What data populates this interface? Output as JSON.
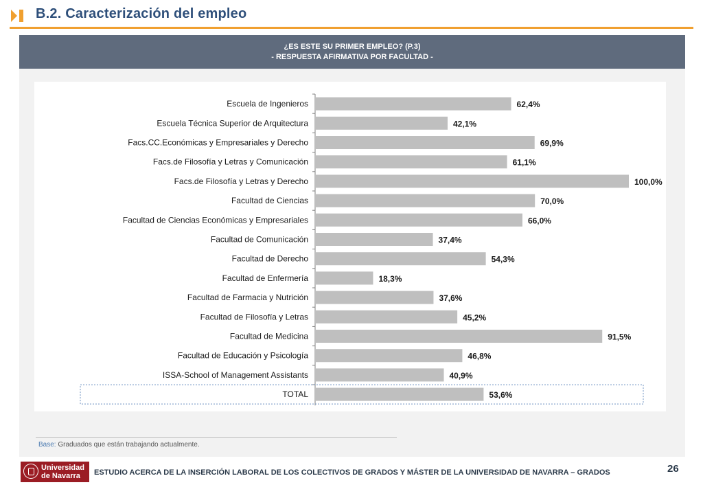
{
  "header": {
    "title": "B.2. Caracterización del empleo"
  },
  "chart_header": {
    "line1": "¿ES ESTE SU PRIMER EMPLEO? (P.3)",
    "line2": "- RESPUESTA AFIRMATIVA POR FACULTAD -"
  },
  "chart_data": {
    "type": "bar",
    "orientation": "horizontal",
    "title": "¿ES ESTE SU PRIMER EMPLEO? (P.3) - RESPUESTA AFIRMATIVA POR FACULTAD -",
    "xlim": [
      0,
      100
    ],
    "unit": "%",
    "bar_color": "#bfbfbf",
    "highlight_category": "TOTAL",
    "categories": [
      "Escuela de Ingenieros",
      "Escuela Técnica Superior de Arquitectura",
      "Facs.CC.Económicas y Empresariales y Derecho",
      "Facs.de Filosofía y Letras y Comunicación",
      "Facs.de Filosofía y Letras y Derecho",
      "Facultad de Ciencias",
      "Facultad de Ciencias Económicas y Empresariales",
      "Facultad de Comunicación",
      "Facultad de Derecho",
      "Facultad de Enfermería",
      "Facultad de Farmacia y Nutrición",
      "Facultad de Filosofía y Letras",
      "Facultad de Medicina",
      "Facultad de Educación y Psicología",
      "ISSA-School of Management Assistants",
      "TOTAL"
    ],
    "values": [
      62.4,
      42.1,
      69.9,
      61.1,
      100.0,
      70.0,
      66.0,
      37.4,
      54.3,
      18.3,
      37.6,
      45.2,
      91.5,
      46.8,
      40.9,
      53.6
    ],
    "value_labels": [
      "62,4%",
      "42,1%",
      "69,9%",
      "61,1%",
      "100,0%",
      "70,0%",
      "66,0%",
      "37,4%",
      "54,3%",
      "18,3%",
      "37,6%",
      "45,2%",
      "91,5%",
      "46,8%",
      "40,9%",
      "53,6%"
    ]
  },
  "footnote": {
    "label": "Base:",
    "text": "Graduados que están trabajando actualmente."
  },
  "footer": {
    "logo_line1": "Universidad",
    "logo_line2": "de Navarra",
    "study_title": "ESTUDIO ACERCA DE LA INSERCIÓN LABORAL DE LOS COLECTIVOS DE GRADOS Y MÁSTER DE LA UNIVERSIDAD DE NAVARRA – GRADOS",
    "page_number": "26"
  },
  "colors": {
    "title": "#2e4f7a",
    "accent": "#f0a030",
    "header_band": "#5f6b7d",
    "brand": "#9b1c24"
  }
}
